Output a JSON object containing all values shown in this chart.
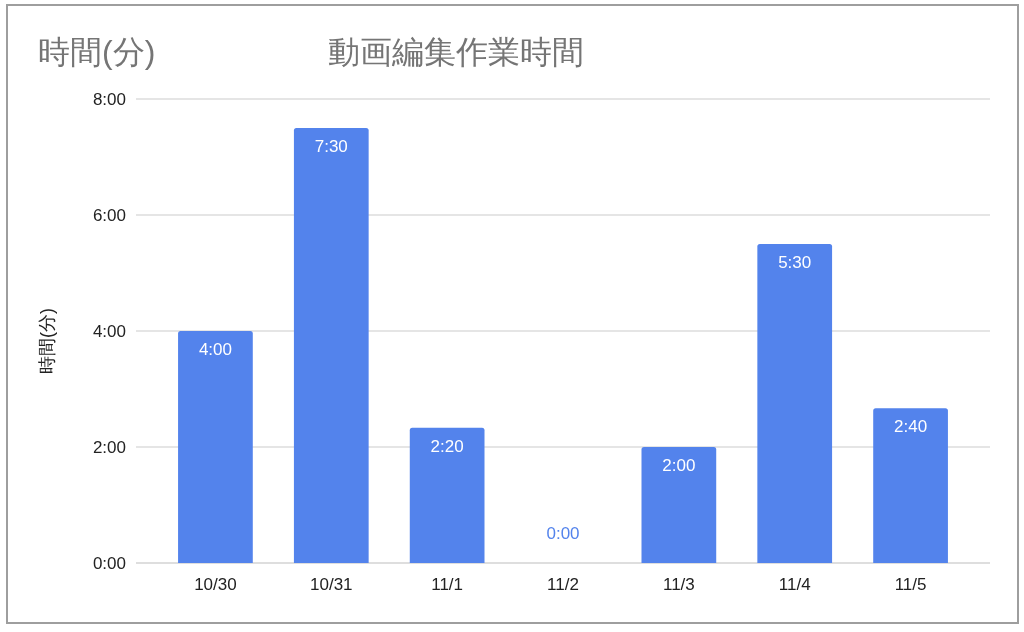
{
  "chart_data": {
    "type": "bar",
    "title": "動画編集作業時間",
    "annotations": [
      "時間(分)"
    ],
    "ylabel": "時間(分)",
    "categories": [
      "10/30",
      "10/31",
      "11/1",
      "11/2",
      "11/3",
      "11/4",
      "11/5"
    ],
    "values": [
      4,
      7.5,
      2.333,
      0,
      2,
      5.5,
      2.667
    ],
    "value_labels": [
      "4:00",
      "7:30",
      "2:20",
      "0:00",
      "2:00",
      "5:30",
      "2:40"
    ],
    "color": "#5383ec",
    "ylim": [
      0,
      8
    ],
    "yticks": [
      {
        "value": 0,
        "label": "0:00"
      },
      {
        "value": 2,
        "label": "2:00"
      },
      {
        "value": 4,
        "label": "4:00"
      },
      {
        "value": 6,
        "label": "6:00"
      },
      {
        "value": 8,
        "label": "8:00"
      }
    ],
    "grid": "y"
  }
}
